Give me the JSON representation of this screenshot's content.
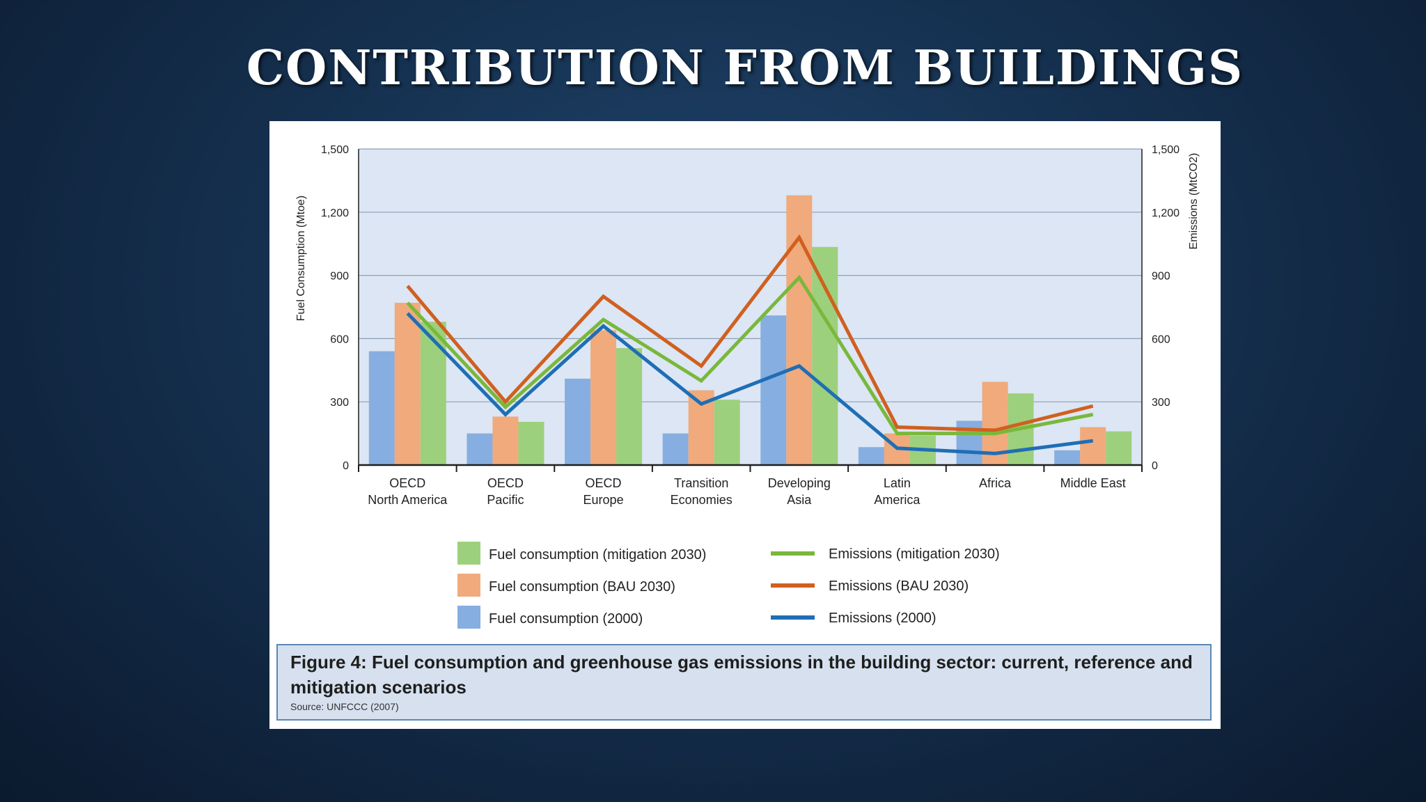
{
  "slide": {
    "title": "CONTRIBUTION FROM BUILDINGS"
  },
  "figure": {
    "caption": "Figure 4: Fuel consumption and greenhouse gas emissions in the building sector: current, reference and mitigation scenarios",
    "source": "Source: UNFCCC (2007)"
  },
  "chart_data": {
    "type": "bar",
    "categories": [
      [
        "OECD",
        "North America"
      ],
      [
        "OECD",
        "Pacific"
      ],
      [
        "OECD",
        "Europe"
      ],
      [
        "Transition",
        "Economies"
      ],
      [
        "Developing",
        "Asia"
      ],
      [
        "Latin",
        "America"
      ],
      [
        "Africa"
      ],
      [
        "Middle East"
      ]
    ],
    "ylabel": "Fuel Consumption (Mtoe)",
    "y2label": "Emissions (MtCO2)",
    "ylim": [
      0,
      1500
    ],
    "y2lim": [
      0,
      1500
    ],
    "yticks": [
      0,
      300,
      600,
      900,
      1200,
      1500
    ],
    "ytick_labels": [
      "0",
      "300",
      "600",
      "900",
      "1,200",
      "1,500"
    ],
    "grid": true,
    "bar_series": [
      {
        "name": "Fuel consumption (2000)",
        "color": "#86aee0",
        "values": [
          540,
          150,
          410,
          150,
          710,
          85,
          210,
          70
        ]
      },
      {
        "name": "Fuel consumption (BAU 2030)",
        "color": "#f0aa7c",
        "values": [
          770,
          230,
          640,
          355,
          1280,
          150,
          395,
          180
        ]
      },
      {
        "name": "Fuel consumption (mitigation 2030)",
        "color": "#9dd07c",
        "values": [
          680,
          205,
          555,
          310,
          1035,
          140,
          340,
          160
        ]
      }
    ],
    "line_series": [
      {
        "name": "Emissions (2000)",
        "color": "#1f6eb5",
        "values": [
          720,
          240,
          660,
          290,
          470,
          80,
          55,
          115
        ]
      },
      {
        "name": "Emissions (BAU 2030)",
        "color": "#d0601f",
        "values": [
          850,
          300,
          800,
          470,
          1080,
          180,
          165,
          280
        ]
      },
      {
        "name": "Emissions (mitigation 2030)",
        "color": "#79b83b",
        "values": [
          770,
          275,
          690,
          400,
          890,
          150,
          150,
          240
        ]
      }
    ],
    "legend": {
      "placement": "bottom",
      "left_column": [
        "Fuel consumption (mitigation 2030)",
        "Fuel consumption (BAU 2030)",
        "Fuel consumption (2000)"
      ],
      "right_column": [
        "Emissions (mitigation 2030)",
        "Emissions (BAU 2030)",
        "Emissions (2000)"
      ]
    },
    "plot_background": "#dce6f4"
  }
}
